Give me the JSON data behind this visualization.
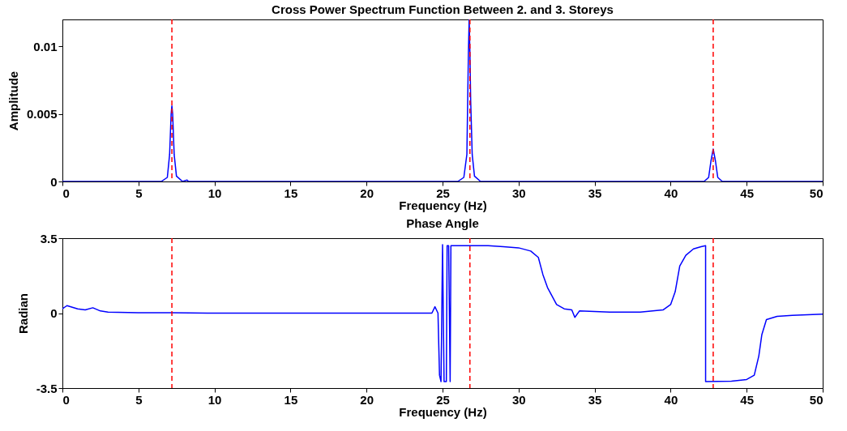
{
  "chart_data": [
    {
      "type": "line",
      "title": "Cross Power Spectrum Function Between 2. and 3. Storeys",
      "xlabel": "Frequency (Hz)",
      "ylabel": "Amplitude",
      "x": [
        0,
        6.5,
        6.9,
        7.05,
        7.15,
        7.2,
        7.25,
        7.35,
        7.5,
        7.9,
        8.2,
        8.3,
        26.0,
        26.4,
        26.6,
        26.7,
        26.75,
        26.8,
        26.85,
        26.95,
        27.1,
        27.5,
        42.2,
        42.5,
        42.65,
        42.8,
        42.95,
        43.1,
        43.4,
        50
      ],
      "series": [
        {
          "color": "#0000ff",
          "values": [
            0,
            0,
            0.0003,
            0.002,
            0.005,
            0.0056,
            0.005,
            0.002,
            0.0004,
            0,
            0.0001,
            0,
            0,
            0.0003,
            0.002,
            0.0095,
            0.012,
            0.0095,
            0.006,
            0.002,
            0.0004,
            0,
            0,
            0.0003,
            0.0015,
            0.0024,
            0.0015,
            0.0003,
            0,
            0
          ]
        }
      ],
      "xlim": [
        0,
        50
      ],
      "xticks": [
        0,
        5,
        10,
        15,
        20,
        25,
        30,
        35,
        40,
        45,
        50
      ],
      "ylim": [
        0,
        0.012
      ],
      "yticks": [
        0,
        0.005,
        0.01
      ],
      "grid": false,
      "line_style": "solid",
      "ref_lines": [
        {
          "axis": "x",
          "value": 7.2,
          "color": "#ff0000",
          "line_style": "dashed"
        },
        {
          "axis": "x",
          "value": 26.8,
          "color": "#ff0000",
          "line_style": "dashed"
        },
        {
          "axis": "x",
          "value": 42.8,
          "color": "#ff0000",
          "line_style": "dashed"
        }
      ]
    },
    {
      "type": "line",
      "title": "Phase Angle",
      "xlabel": "Frequency (Hz)",
      "ylabel": "Radian",
      "x": [
        0,
        0.3,
        1,
        1.5,
        2,
        2.5,
        3,
        5,
        7.2,
        10,
        15,
        20,
        24.3,
        24.5,
        24.7,
        24.8,
        24.9,
        25.0,
        25.1,
        25.25,
        25.3,
        25.4,
        25.5,
        25.55,
        28,
        29,
        30,
        30.8,
        31.3,
        31.6,
        31.9,
        32.2,
        32.5,
        33,
        33.5,
        33.7,
        34,
        36,
        38,
        39.5,
        40,
        40.3,
        40.6,
        41,
        41.5,
        42,
        42.3,
        42.3,
        44,
        45,
        45.5,
        45.8,
        46,
        46.3,
        47,
        48,
        50
      ],
      "series": [
        {
          "color": "#0000ff",
          "values": [
            0.2,
            0.35,
            0.2,
            0.15,
            0.25,
            0.1,
            0.05,
            0.02,
            0.02,
            0,
            0,
            0,
            0,
            0.3,
            0,
            -2.9,
            -3.2,
            3.2,
            -3.2,
            -3.2,
            3.15,
            3.15,
            -3.2,
            3.15,
            3.15,
            3.1,
            3.05,
            2.9,
            2.6,
            1.8,
            1.2,
            0.8,
            0.4,
            0.2,
            0.15,
            -0.2,
            0.1,
            0.05,
            0.05,
            0.15,
            0.4,
            1.0,
            2.2,
            2.7,
            3.0,
            3.1,
            3.15,
            -3.2,
            -3.18,
            -3.1,
            -2.9,
            -2.0,
            -1.0,
            -0.3,
            -0.15,
            -0.1,
            -0.05
          ]
        }
      ],
      "xlim": [
        0,
        50
      ],
      "xticks": [
        0,
        5,
        10,
        15,
        20,
        25,
        30,
        35,
        40,
        45,
        50
      ],
      "ylim": [
        -3.5,
        3.5
      ],
      "yticks": [
        -3.5,
        0,
        3.5
      ],
      "grid": false,
      "line_style": "solid",
      "ref_lines": [
        {
          "axis": "x",
          "value": 7.2,
          "color": "#ff0000",
          "line_style": "dashed"
        },
        {
          "axis": "x",
          "value": 26.8,
          "color": "#ff0000",
          "line_style": "dashed"
        },
        {
          "axis": "x",
          "value": 42.8,
          "color": "#ff0000",
          "line_style": "dashed"
        }
      ]
    }
  ]
}
